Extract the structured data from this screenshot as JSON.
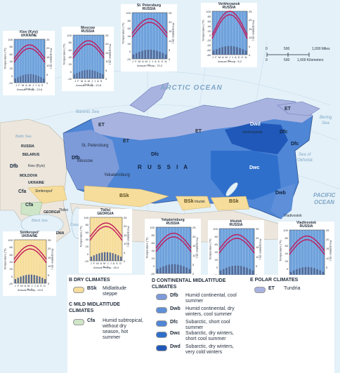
{
  "map": {
    "oceans": {
      "arctic": "ARCTIC OCEAN",
      "pacific_1": "PACIFIC",
      "pacific_2": "OCEAN",
      "barents": "Barents Sea",
      "bering_1": "Bering",
      "bering_2": "Sea",
      "okhotsk_1": "Sea of",
      "okhotsk_2": "Okhotsk",
      "baltic": "Baltic Sea",
      "black": "Black Sea",
      "caspian": "Caspian Sea"
    },
    "country": "R U S S I A",
    "countries": {
      "belarus": "BELARUS",
      "ukraine": "UKRAINE",
      "moldova": "MOLDOVA",
      "georgia": "GEORGIA",
      "armenia": "ARMENIA",
      "russia_small": "RUSSIA"
    },
    "cities": {
      "st_petersburg": "St. Petersburg",
      "moscow": "Moscow",
      "kiev": "Kiev (Kyiv)",
      "simferopol": "Simferopol'",
      "tbilisi": "Tbilisi",
      "yekaterinburg": "Yekaterinburg",
      "irkutsk": "Irkutsk",
      "verkhoyansk": "Verkhoyansk",
      "vladivostok": "Vladivostok"
    },
    "zones": {
      "et_1": "ET",
      "et_2": "ET",
      "et_3": "ET",
      "et_4": "ET",
      "dfb_1": "Dfb",
      "dfb_2": "Dfb",
      "dfc_1": "Dfc",
      "dfc_2": "Dfc",
      "dfc_3": "Dfc",
      "dwd": "Dwd",
      "dwc": "Dwc",
      "dwb": "Dwb",
      "bsk_1": "BSk",
      "bsk_2": "BSk",
      "bsk_3": "BSk",
      "cfa_1": "Cfa",
      "cfa_2": "Cfa"
    },
    "scale": {
      "mi_0": "0",
      "mi_500": "500",
      "mi_1000": "1,000 Miles",
      "km_0": "0",
      "km_500": "500",
      "km_1000": "1,000 Kilometers"
    }
  },
  "climographs": {
    "axis_left": "Temperature (°F)",
    "axis_right": "Precipitation (in.)",
    "months": "J F M A M J J A S O N D",
    "left_ticks": [
      "100",
      "80",
      "60",
      "40",
      "20",
      "0",
      "-20"
    ],
    "left_ticks_verkhoyansk": [
      "100",
      "80",
      "60",
      "40",
      "20",
      "0",
      "-20",
      "-40",
      "-60",
      "-80"
    ],
    "right_ticks": [
      "25",
      "20",
      "15",
      "10",
      "5",
      "0"
    ],
    "items": [
      {
        "title": "Kiev (Kyiv)",
        "country": "UKRAINE",
        "precip": "Annual Precip.: 23.6"
      },
      {
        "title": "Moscow",
        "country": "RUSSIA",
        "precip": "Annual Precip.: 24.8"
      },
      {
        "title": "St. Petersburg",
        "country": "RUSSIA",
        "precip": "Annual Precip.: 70.2"
      },
      {
        "title": "Verkhoyansk",
        "country": "RUSSIA",
        "precip": "Annual Precip.: 5.2"
      },
      {
        "title": "Simferopol'",
        "country": "UKRAINE",
        "precip": "Annual Precip.: 19.0"
      },
      {
        "title": "Tbilisi",
        "country": "GEORGIA",
        "precip": "Annual Precip.: 18.4"
      },
      {
        "title": "Yekaterinburg",
        "country": "RUSSIA",
        "precip": "Annual Precip.: 16.7"
      },
      {
        "title": "Irkutsk",
        "country": "RUSSIA",
        "precip": "Annual Precip.: 14.9"
      },
      {
        "title": "Vladivostok",
        "country": "RUSSIA",
        "precip": "Annual Precip.: 21.0"
      }
    ]
  },
  "legend": {
    "dry_title": "B  DRY CLIMATES",
    "bsk_code": "BSk",
    "bsk_desc": "Midlatitude steppe",
    "mild_title": "C  MILD MIDLATITUDE CLIMATES",
    "cfa_code": "Cfa",
    "cfa_desc": "Humid subtropical, without dry season, hot summer",
    "cont_title": "D  CONTINENTAL MIDLATITUDE CLIMATES",
    "dfb_code": "Dfb",
    "dfb_desc": "Humid continental, cool summer",
    "dwb_code": "Dwb",
    "dwb_desc": "Humid continental, dry winters, cool summer",
    "dfc_code": "Dfc",
    "dfc_desc": "Subarctic, short cool summer",
    "dwc_code": "Dwc",
    "dwc_desc": "Subarctic, dry winters, short cool summer",
    "dwd_code": "Dwd",
    "dwd_desc": "Subarctic, dry winters, very cold winters",
    "polar_title": "E  POLAR CLIMATES",
    "et_code": "ET",
    "et_desc": "Tundria"
  },
  "colors": {
    "ocean": "#e4f1f9",
    "land_other": "#ece6dc",
    "et": "#a9b3e0",
    "dfb": "#7d9ad9",
    "dfc": "#4f86d6",
    "dwc": "#2f6fcc",
    "dwd": "#1f58b8",
    "dwb": "#5e8fd8",
    "bsk": "#f6dd9b",
    "cfa": "#cfe5c7",
    "graph_cold": "#6fa2dc",
    "graph_dry": "#f6dd9b",
    "temp_line": "#c2185b"
  }
}
